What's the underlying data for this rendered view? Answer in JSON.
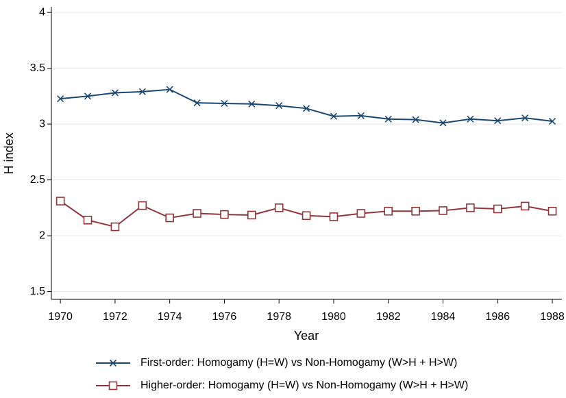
{
  "chart_data": {
    "type": "line",
    "x_label": "Year",
    "y_label": "H index",
    "x": [
      1970,
      1971,
      1972,
      1973,
      1974,
      1975,
      1976,
      1977,
      1978,
      1979,
      1980,
      1981,
      1982,
      1983,
      1984,
      1985,
      1986,
      1987,
      1988
    ],
    "series": [
      {
        "name": "First-order: Homogamy (H=W) vs Non-Homogamy (W>H + H>W)",
        "color": "#1a476f",
        "marker": "x",
        "values": [
          3.227,
          3.25,
          3.28,
          3.29,
          3.31,
          3.19,
          3.185,
          3.18,
          3.165,
          3.14,
          3.07,
          3.075,
          3.045,
          3.04,
          3.01,
          3.045,
          3.03,
          3.055,
          3.025
        ]
      },
      {
        "name": "Higher-order: Homogamy (H=W) vs Non-Homogamy (W>H + H>W)",
        "color": "#90353b",
        "marker": "square",
        "values": [
          2.31,
          2.14,
          2.08,
          2.27,
          2.16,
          2.2,
          2.19,
          2.185,
          2.25,
          2.18,
          2.17,
          2.2,
          2.22,
          2.22,
          2.225,
          2.25,
          2.24,
          2.265,
          2.22
        ]
      }
    ],
    "xlim": [
      1969.67,
      1988.35
    ],
    "xticks": [
      1970,
      1972,
      1974,
      1976,
      1978,
      1980,
      1982,
      1984,
      1986,
      1988
    ],
    "ylim": [
      1.43,
      4.05
    ],
    "yticks": [
      1.5,
      2,
      2.5,
      3,
      3.5,
      4
    ],
    "grid": true,
    "legend": "bottom"
  }
}
